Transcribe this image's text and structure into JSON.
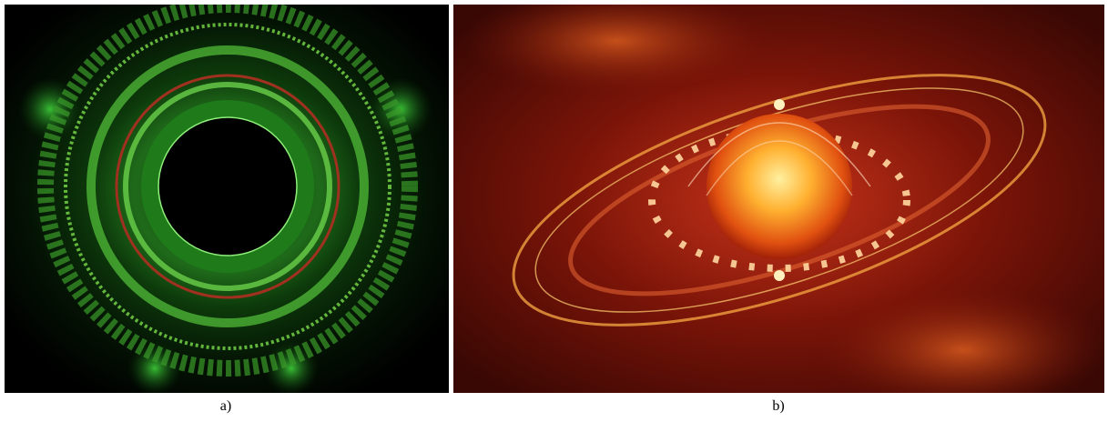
{
  "figures": [
    {
      "caption": "a)"
    },
    {
      "caption": "b)"
    }
  ]
}
